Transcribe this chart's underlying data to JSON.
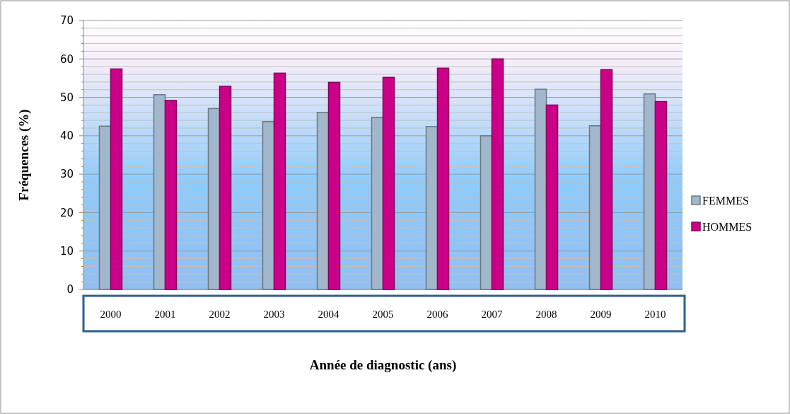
{
  "chart_data": {
    "type": "bar",
    "xlabel": "Année de diagnostic (ans)",
    "ylabel": "Fréquences (%)",
    "categories": [
      "2000",
      "2001",
      "2002",
      "2003",
      "2004",
      "2005",
      "2006",
      "2007",
      "2008",
      "2009",
      "2010"
    ],
    "series": [
      {
        "name": "FEMMES",
        "color": "#a3b7cc",
        "values": [
          42.5,
          50.7,
          47.1,
          43.7,
          46.1,
          44.8,
          42.4,
          40.0,
          52.1,
          42.6,
          50.9
        ]
      },
      {
        "name": "HOMMES",
        "color": "#cc0088",
        "values": [
          57.4,
          49.2,
          52.9,
          56.3,
          53.9,
          55.2,
          57.6,
          60.0,
          48.0,
          57.2,
          48.9
        ]
      }
    ],
    "ylim": [
      0,
      70
    ],
    "yticks": [
      0,
      {
        "value": 2,
        "label": null
      },
      {
        "value": 4,
        "label": null
      },
      {
        "value": 6,
        "label": null
      },
      {
        "value": 8,
        "label": null
      },
      10,
      {
        "value": 12,
        "label": null
      },
      {
        "value": 14,
        "label": null
      },
      {
        "value": 16,
        "label": null
      },
      {
        "value": 18,
        "label": null
      },
      20,
      {
        "value": 22,
        "label": null
      },
      {
        "value": 24,
        "label": null
      },
      {
        "value": 26,
        "label": null
      },
      {
        "value": 28,
        "label": null
      },
      30,
      {
        "value": 32,
        "label": null
      },
      {
        "value": 34,
        "label": null
      },
      {
        "value": 36,
        "label": null
      },
      {
        "value": 38,
        "label": null
      },
      40,
      {
        "value": 42,
        "label": null
      },
      {
        "value": 44,
        "label": null
      },
      {
        "value": 46,
        "label": null
      },
      {
        "value": 48,
        "label": null
      },
      50,
      {
        "value": 52,
        "label": null
      },
      {
        "value": 54,
        "label": null
      },
      {
        "value": 56,
        "label": null
      },
      {
        "value": 58,
        "label": null
      },
      60,
      {
        "value": 62,
        "label": null
      },
      {
        "value": 64,
        "label": null
      },
      {
        "value": 66,
        "label": null
      },
      {
        "value": 68,
        "label": null
      },
      70
    ],
    "grid": "y",
    "legend": "right"
  }
}
